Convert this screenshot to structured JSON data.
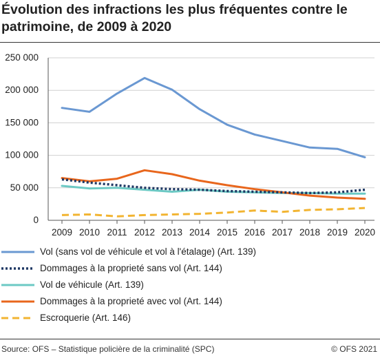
{
  "title": "Évolution des infractions les plus fréquentes contre le patrimoine, de 2009 à 2020",
  "source": "Source: OFS – Statistique policière de la criminalité (SPC)",
  "copyright": "© OFS 2021",
  "chart_data": {
    "type": "line",
    "title": "Évolution des infractions les plus fréquentes contre le patrimoine, de 2009 à 2020",
    "x": [
      2009,
      2010,
      2011,
      2012,
      2013,
      2014,
      2015,
      2016,
      2017,
      2018,
      2019,
      2020
    ],
    "y_ticks": [
      "0",
      "50 000",
      "100 000",
      "150 000",
      "200 000",
      "250 000"
    ],
    "y_tick_values": [
      0,
      50000,
      100000,
      150000,
      200000,
      250000
    ],
    "ylim": [
      0,
      250000
    ],
    "grid": true,
    "legend_position": "bottom",
    "series": [
      {
        "name": "Vol (sans vol de véhicule et vol à l'étalage) (Art. 139)",
        "color": "#6a98d2",
        "style": "solid",
        "values": [
          173000,
          167000,
          195000,
          219000,
          201000,
          171000,
          147000,
          132000,
          122000,
          112000,
          110000,
          97000
        ]
      },
      {
        "name": "Dommages à la proprieté sans vol (Art. 144)",
        "color": "#1f3864",
        "style": "dotted",
        "values": [
          63000,
          58000,
          54000,
          50000,
          48000,
          47000,
          45000,
          44000,
          43000,
          42000,
          43000,
          47000
        ]
      },
      {
        "name": "Vol de véhicule (Art. 139)",
        "color": "#6cc9c4",
        "style": "solid",
        "values": [
          53000,
          49000,
          50000,
          47000,
          44000,
          47000,
          44000,
          43000,
          42000,
          42000,
          41000,
          41000
        ]
      },
      {
        "name": "Dommages à la proprieté avec vol (Art. 144)",
        "color": "#e8661c",
        "style": "solid",
        "values": [
          65000,
          60000,
          64000,
          77000,
          71000,
          61000,
          54000,
          48000,
          43000,
          38000,
          35000,
          33000
        ]
      },
      {
        "name": "Escroquerie (Art. 146)",
        "color": "#f2b431",
        "style": "dashed",
        "values": [
          8000,
          9000,
          6000,
          8000,
          9000,
          10000,
          12000,
          15000,
          13000,
          16000,
          17000,
          19000
        ]
      }
    ]
  }
}
